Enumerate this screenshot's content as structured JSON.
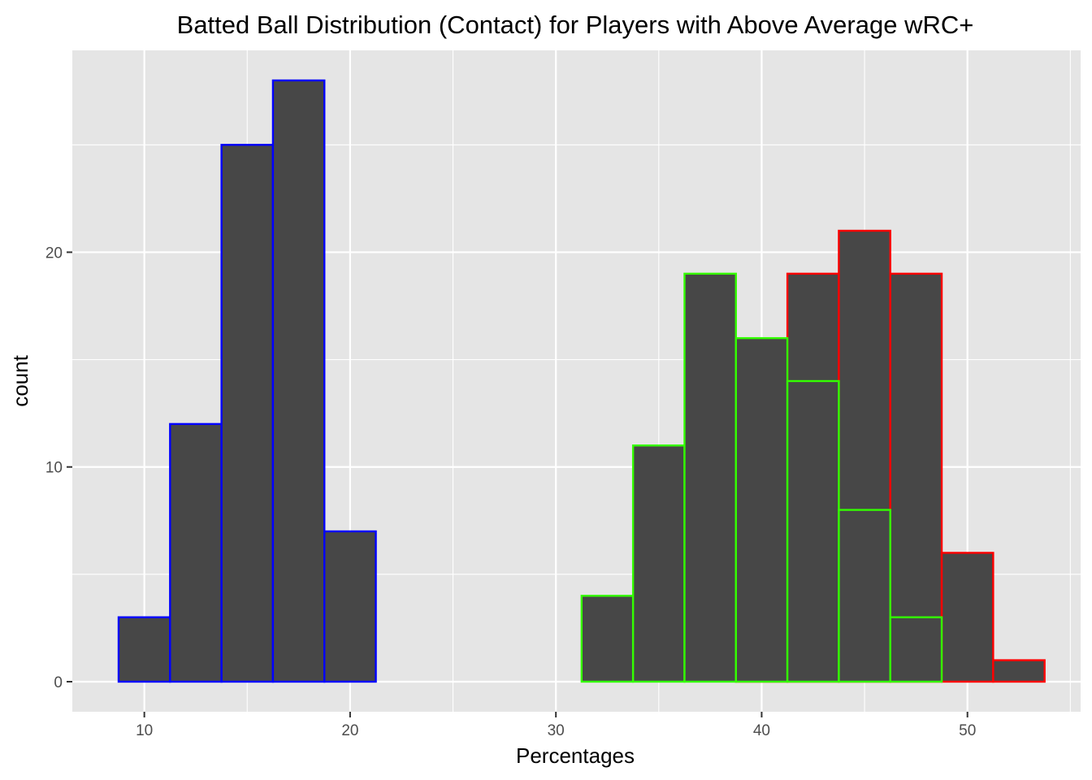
{
  "chart_data": {
    "type": "bar",
    "title": "Batted Ball Distribution (Contact) for Players with Above Average wRC+",
    "xlabel": "Percentages",
    "ylabel": "count",
    "xlim": [
      6.5,
      55.5
    ],
    "ylim": [
      -1.4,
      29.4
    ],
    "x_ticks": [
      10,
      20,
      30,
      40,
      50
    ],
    "y_ticks": [
      0,
      10,
      20
    ],
    "grid": true,
    "panel_background": "#e5e5e5",
    "grid_color": "#ffffff",
    "bar_fill": "#474747",
    "bin_width": 2.5,
    "series": [
      {
        "outline_color": "#ff0000",
        "bins": [
          {
            "x0": 31.25,
            "x1": 33.75,
            "count": 0
          },
          {
            "x0": 33.75,
            "x1": 36.25,
            "count": 0
          },
          {
            "x0": 36.25,
            "x1": 38.75,
            "count": 0
          },
          {
            "x0": 38.75,
            "x1": 41.25,
            "count": 2
          },
          {
            "x0": 41.25,
            "x1": 43.75,
            "count": 19
          },
          {
            "x0": 43.75,
            "x1": 46.25,
            "count": 21
          },
          {
            "x0": 46.25,
            "x1": 48.75,
            "count": 19
          },
          {
            "x0": 48.75,
            "x1": 51.25,
            "count": 6
          },
          {
            "x0": 51.25,
            "x1": 53.75,
            "count": 1
          }
        ]
      },
      {
        "outline_color": "#0000ff",
        "bins": [
          {
            "x0": 8.75,
            "x1": 11.25,
            "count": 3
          },
          {
            "x0": 11.25,
            "x1": 13.75,
            "count": 12
          },
          {
            "x0": 13.75,
            "x1": 16.25,
            "count": 25
          },
          {
            "x0": 16.25,
            "x1": 18.75,
            "count": 28
          },
          {
            "x0": 18.75,
            "x1": 21.25,
            "count": 7
          },
          {
            "x0": 21.25,
            "x1": 23.75,
            "count": 0
          },
          {
            "x0": 23.75,
            "x1": 26.25,
            "count": 0
          },
          {
            "x0": 26.25,
            "x1": 28.75,
            "count": 0
          },
          {
            "x0": 28.75,
            "x1": 31.25,
            "count": 0
          },
          {
            "x0": 31.25,
            "x1": 33.75,
            "count": 0
          },
          {
            "x0": 33.75,
            "x1": 36.25,
            "count": 0
          },
          {
            "x0": 36.25,
            "x1": 38.75,
            "count": 0
          },
          {
            "x0": 38.75,
            "x1": 41.25,
            "count": 0
          },
          {
            "x0": 41.25,
            "x1": 43.75,
            "count": 0
          },
          {
            "x0": 43.75,
            "x1": 46.25,
            "count": 0
          },
          {
            "x0": 46.25,
            "x1": 48.75,
            "count": 0
          },
          {
            "x0": 48.75,
            "x1": 51.25,
            "count": 0
          },
          {
            "x0": 51.25,
            "x1": 53.75,
            "count": 0
          }
        ]
      },
      {
        "outline_color": "#33ff00",
        "bins": [
          {
            "x0": 8.75,
            "x1": 11.25,
            "count": 0
          },
          {
            "x0": 11.25,
            "x1": 13.75,
            "count": 0
          },
          {
            "x0": 13.75,
            "x1": 16.25,
            "count": 0
          },
          {
            "x0": 16.25,
            "x1": 18.75,
            "count": 0
          },
          {
            "x0": 18.75,
            "x1": 21.25,
            "count": 0
          },
          {
            "x0": 21.25,
            "x1": 23.75,
            "count": 0
          },
          {
            "x0": 23.75,
            "x1": 26.25,
            "count": 0
          },
          {
            "x0": 26.25,
            "x1": 28.75,
            "count": 0
          },
          {
            "x0": 28.75,
            "x1": 31.25,
            "count": 0
          },
          {
            "x0": 31.25,
            "x1": 33.75,
            "count": 4
          },
          {
            "x0": 33.75,
            "x1": 36.25,
            "count": 11
          },
          {
            "x0": 36.25,
            "x1": 38.75,
            "count": 19
          },
          {
            "x0": 38.75,
            "x1": 41.25,
            "count": 16
          },
          {
            "x0": 41.25,
            "x1": 43.75,
            "count": 14
          },
          {
            "x0": 43.75,
            "x1": 46.25,
            "count": 8
          },
          {
            "x0": 46.25,
            "x1": 48.75,
            "count": 3
          },
          {
            "x0": 48.75,
            "x1": 51.25,
            "count": 0
          },
          {
            "x0": 51.25,
            "x1": 53.75,
            "count": 0
          }
        ]
      }
    ]
  }
}
